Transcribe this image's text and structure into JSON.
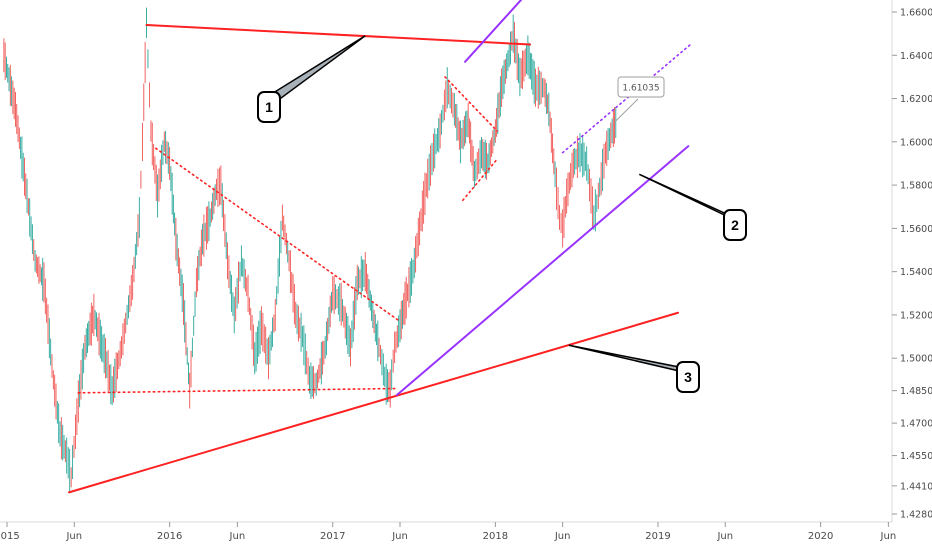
{
  "chart_data": {
    "type": "line",
    "title": "",
    "xlabel": "",
    "ylabel": "",
    "x_range": [
      "2014-12-25",
      "2021-06-15"
    ],
    "ylim": [
      1.422,
      1.665
    ],
    "y_ticks": [
      1.66,
      1.64,
      1.62,
      1.6,
      1.58,
      1.56,
      1.54,
      1.52,
      1.5,
      1.485,
      1.47,
      1.455,
      1.441,
      1.428
    ],
    "y_tick_labels": [
      "1.66000",
      "1.64000",
      "1.62000",
      "1.60000",
      "1.58000",
      "1.56000",
      "1.54000",
      "1.52000",
      "1.50000",
      "1.48500",
      "1.47000",
      "1.45500",
      "1.44100",
      "1.42800"
    ],
    "x_ticks": [
      {
        "date": "2015-01-01",
        "label": "2015"
      },
      {
        "date": "2015-06-01",
        "label": "Jun"
      },
      {
        "date": "2016-01-01",
        "label": "2016"
      },
      {
        "date": "2016-06-01",
        "label": "Jun"
      },
      {
        "date": "2017-01-01",
        "label": "2017"
      },
      {
        "date": "2017-06-01",
        "label": "Jun"
      },
      {
        "date": "2018-01-01",
        "label": "2018"
      },
      {
        "date": "2018-06-01",
        "label": "Jun"
      },
      {
        "date": "2019-01-01",
        "label": "2019"
      },
      {
        "date": "2019-06-01",
        "label": "Jun"
      },
      {
        "date": "2020-01-01",
        "label": "2020"
      },
      {
        "date": "2020-06-01",
        "label": "Jun"
      }
    ],
    "price_series": [
      [
        "2014-12-25",
        1.64
      ],
      [
        "2015-01-20",
        1.615
      ],
      [
        "2015-02-15",
        1.575
      ],
      [
        "2015-03-05",
        1.545
      ],
      [
        "2015-03-25",
        1.535
      ],
      [
        "2015-04-15",
        1.49
      ],
      [
        "2015-04-30",
        1.465
      ],
      [
        "2015-05-15",
        1.455
      ],
      [
        "2015-05-25",
        1.445
      ],
      [
        "2015-06-10",
        1.48
      ],
      [
        "2015-06-25",
        1.505
      ],
      [
        "2015-07-15",
        1.52
      ],
      [
        "2015-08-10",
        1.5
      ],
      [
        "2015-08-25",
        1.485
      ],
      [
        "2015-09-15",
        1.505
      ],
      [
        "2015-10-10",
        1.535
      ],
      [
        "2015-10-25",
        1.565
      ],
      [
        "2015-11-01",
        1.6
      ],
      [
        "2015-11-10",
        1.655
      ],
      [
        "2015-11-20",
        1.605
      ],
      [
        "2015-12-05",
        1.575
      ],
      [
        "2015-12-20",
        1.6
      ],
      [
        "2016-01-01",
        1.59
      ],
      [
        "2016-01-15",
        1.555
      ],
      [
        "2016-02-01",
        1.525
      ],
      [
        "2016-02-15",
        1.485
      ],
      [
        "2016-03-01",
        1.535
      ],
      [
        "2016-03-15",
        1.555
      ],
      [
        "2016-04-01",
        1.565
      ],
      [
        "2016-04-15",
        1.578
      ],
      [
        "2016-04-25",
        1.58
      ],
      [
        "2016-05-10",
        1.545
      ],
      [
        "2016-05-25",
        1.52
      ],
      [
        "2016-06-10",
        1.545
      ],
      [
        "2016-06-25",
        1.53
      ],
      [
        "2016-07-10",
        1.5
      ],
      [
        "2016-07-25",
        1.515
      ],
      [
        "2016-08-10",
        1.5
      ],
      [
        "2016-08-25",
        1.52
      ],
      [
        "2016-09-10",
        1.565
      ],
      [
        "2016-09-25",
        1.545
      ],
      [
        "2016-10-10",
        1.52
      ],
      [
        "2016-10-25",
        1.51
      ],
      [
        "2016-11-10",
        1.49
      ],
      [
        "2016-11-25",
        1.488
      ],
      [
        "2016-12-15",
        1.505
      ],
      [
        "2017-01-01",
        1.53
      ],
      [
        "2017-01-20",
        1.525
      ],
      [
        "2017-02-10",
        1.505
      ],
      [
        "2017-02-25",
        1.535
      ],
      [
        "2017-03-15",
        1.54
      ],
      [
        "2017-04-01",
        1.52
      ],
      [
        "2017-04-15",
        1.505
      ],
      [
        "2017-05-01",
        1.488
      ],
      [
        "2017-05-10",
        1.486
      ],
      [
        "2017-05-20",
        1.505
      ],
      [
        "2017-06-01",
        1.515
      ],
      [
        "2017-06-15",
        1.528
      ],
      [
        "2017-06-30",
        1.54
      ],
      [
        "2017-07-15",
        1.56
      ],
      [
        "2017-07-30",
        1.58
      ],
      [
        "2017-08-15",
        1.595
      ],
      [
        "2017-08-30",
        1.605
      ],
      [
        "2017-09-15",
        1.625
      ],
      [
        "2017-10-01",
        1.615
      ],
      [
        "2017-10-15",
        1.6
      ],
      [
        "2017-11-01",
        1.61
      ],
      [
        "2017-11-15",
        1.585
      ],
      [
        "2017-12-01",
        1.595
      ],
      [
        "2017-12-15",
        1.59
      ],
      [
        "2018-01-01",
        1.605
      ],
      [
        "2018-01-15",
        1.625
      ],
      [
        "2018-02-01",
        1.64
      ],
      [
        "2018-02-10",
        1.65
      ],
      [
        "2018-02-25",
        1.63
      ],
      [
        "2018-03-15",
        1.64
      ],
      [
        "2018-04-01",
        1.625
      ],
      [
        "2018-04-20",
        1.625
      ],
      [
        "2018-05-01",
        1.615
      ],
      [
        "2018-05-15",
        1.585
      ],
      [
        "2018-05-25",
        1.565
      ],
      [
        "2018-06-01",
        1.56
      ],
      [
        "2018-06-10",
        1.575
      ],
      [
        "2018-06-25",
        1.59
      ],
      [
        "2018-07-10",
        1.595
      ],
      [
        "2018-07-25",
        1.59
      ],
      [
        "2018-08-10",
        1.565
      ],
      [
        "2018-08-20",
        1.575
      ],
      [
        "2018-09-05",
        1.595
      ],
      [
        "2018-09-20",
        1.605
      ],
      [
        "2018-10-01",
        1.6103
      ]
    ],
    "annotations": [
      {
        "label": "1",
        "kind": "callout"
      },
      {
        "label": "2",
        "kind": "callout"
      },
      {
        "label": "3",
        "kind": "callout"
      },
      {
        "label": "1.61035",
        "kind": "price-tag"
      }
    ],
    "trendlines": [
      {
        "name": "red-top-resistance",
        "color": "#ff2222",
        "style": "solid",
        "from": [
          "2015-11-10",
          1.654
        ],
        "to": [
          "2018-03-20",
          1.645
        ]
      },
      {
        "name": "red-long-support",
        "color": "#ff2222",
        "style": "solid",
        "from": [
          "2015-05-20",
          1.438
        ],
        "to": [
          "2019-02-15",
          1.521
        ]
      },
      {
        "name": "purple-support",
        "color": "#9933ff",
        "style": "solid",
        "from": [
          "2017-05-25",
          1.483
        ],
        "to": [
          "2019-03-10",
          1.598
        ]
      },
      {
        "name": "purple-upper-channel",
        "color": "#9933ff",
        "style": "solid",
        "from": [
          "2017-10-25",
          1.637
        ],
        "to": [
          "2018-06-15",
          1.69
        ]
      },
      {
        "name": "purple-projection",
        "color": "#9933ff",
        "style": "dotted",
        "from": [
          "2018-06-01",
          1.595
        ],
        "to": [
          "2019-03-15",
          1.645
        ]
      },
      {
        "name": "red-triangle-descending",
        "color": "#ff2222",
        "style": "dotted",
        "from": [
          "2015-12-01",
          1.597
        ],
        "to": [
          "2017-06-01",
          1.517
        ]
      },
      {
        "name": "red-triangle-base",
        "color": "#ff2222",
        "style": "dotted",
        "from": [
          "2015-06-10",
          1.484
        ],
        "to": [
          "2017-05-25",
          1.486
        ]
      },
      {
        "name": "red-flag-upper",
        "color": "#ff2222",
        "style": "dotted",
        "from": [
          "2017-09-10",
          1.63
        ],
        "to": [
          "2018-01-05",
          1.605
        ]
      },
      {
        "name": "red-flag-lower",
        "color": "#ff2222",
        "style": "dotted",
        "from": [
          "2017-10-20",
          1.573
        ],
        "to": [
          "2018-01-05",
          1.592
        ]
      }
    ],
    "grid": false,
    "legend": "none",
    "colors": {
      "up": "#26a69a",
      "down": "#ef5350",
      "axis": "#4a4a4a",
      "tag_border": "#9e9e9e"
    }
  }
}
